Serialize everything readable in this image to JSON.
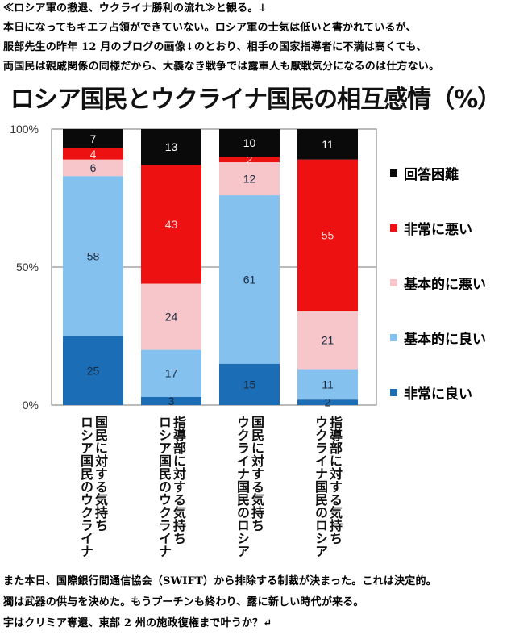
{
  "text": {
    "intro": [
      "≪ロシア軍の撤退、ウクライナ勝利の流れ≫と観る。↓",
      "本日になってもキエフ占領ができていない。ロシア軍の士気は低いと書かれているが、",
      "服部先生の昨年 12 月のブログの画像↓のとおり、相手の国家指導者に不満は高くても、",
      "両国民は親戚関係の同様だから、大義なき戦争では露軍人も厭戦気分になるのは仕方ない。"
    ],
    "outro": [
      "また本日、国際銀行間通信協会（SWIFT）から排除する制裁が決まった。これは決定的。",
      "獨は武器の供与を決めた。もうプーチンも終わり、露に新しい時代が来る。",
      "宇はクリミア奪還、東部 2 州の施政復権まで叶うか？↵"
    ]
  },
  "chart_data": {
    "type": "bar",
    "stacked": true,
    "title": "ロシア国民とウクライナ国民の相互感情（%）",
    "categories": [
      [
        "ロシア国民のウクライナ",
        "国民に対する気持ち"
      ],
      [
        "ロシア国民のウクライナ",
        "指導部に対する気持ち"
      ],
      [
        "ウクライナ国民のロシア",
        "国民に対する気持ち"
      ],
      [
        "ウクライナ国民のロシア",
        "指導部に対する気持ち"
      ]
    ],
    "series": [
      {
        "name": "非常に良い",
        "color": "#1b6db5",
        "values": [
          25,
          3,
          15,
          2
        ]
      },
      {
        "name": "基本的に良い",
        "color": "#85c1ee",
        "values": [
          58,
          17,
          61,
          11
        ]
      },
      {
        "name": "基本的に悪い",
        "color": "#f7c6cb",
        "values": [
          6,
          24,
          12,
          21
        ]
      },
      {
        "name": "非常に悪い",
        "color": "#ee1111",
        "values": [
          4,
          43,
          2,
          55
        ]
      },
      {
        "name": "回答困難",
        "color": "#0a0a0a",
        "values": [
          7,
          13,
          10,
          11
        ]
      }
    ],
    "yticks": [
      "0%",
      "50%",
      "100%"
    ],
    "ylim": [
      0,
      100
    ],
    "legend_position": "right"
  }
}
